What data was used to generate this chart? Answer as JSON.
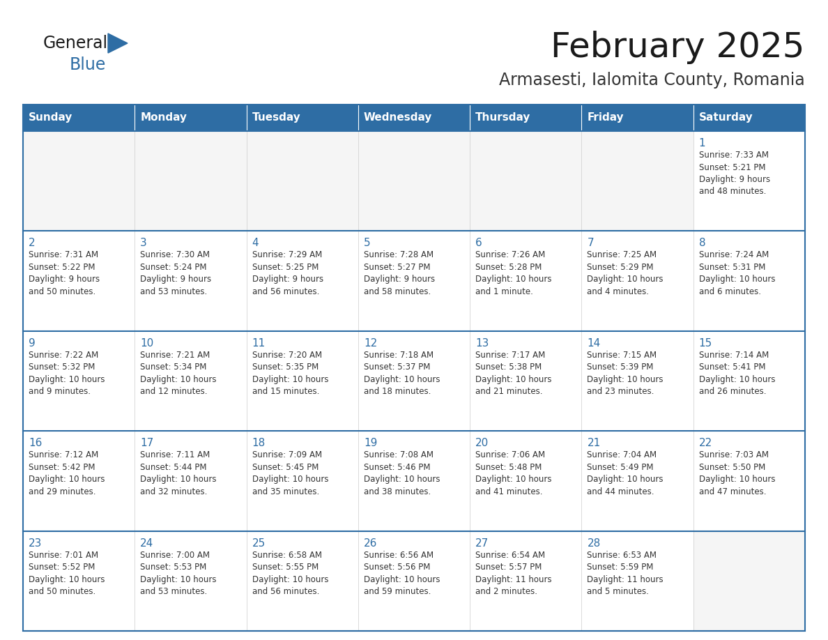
{
  "title": "February 2025",
  "subtitle": "Armasesti, Ialomita County, Romania",
  "header_bg": "#2E6DA4",
  "header_text": "#FFFFFF",
  "cell_bg": "#FFFFFF",
  "cell_bg_empty": "#F5F5F5",
  "separator_color": "#2E6DA4",
  "day_number_color": "#2E6DA4",
  "cell_text_color": "#333333",
  "days_of_week": [
    "Sunday",
    "Monday",
    "Tuesday",
    "Wednesday",
    "Thursday",
    "Friday",
    "Saturday"
  ],
  "calendar_data": [
    [
      null,
      null,
      null,
      null,
      null,
      null,
      {
        "day": 1,
        "sunrise": "7:33 AM",
        "sunset": "5:21 PM",
        "daylight": "9 hours\nand 48 minutes."
      }
    ],
    [
      {
        "day": 2,
        "sunrise": "7:31 AM",
        "sunset": "5:22 PM",
        "daylight": "9 hours\nand 50 minutes."
      },
      {
        "day": 3,
        "sunrise": "7:30 AM",
        "sunset": "5:24 PM",
        "daylight": "9 hours\nand 53 minutes."
      },
      {
        "day": 4,
        "sunrise": "7:29 AM",
        "sunset": "5:25 PM",
        "daylight": "9 hours\nand 56 minutes."
      },
      {
        "day": 5,
        "sunrise": "7:28 AM",
        "sunset": "5:27 PM",
        "daylight": "9 hours\nand 58 minutes."
      },
      {
        "day": 6,
        "sunrise": "7:26 AM",
        "sunset": "5:28 PM",
        "daylight": "10 hours\nand 1 minute."
      },
      {
        "day": 7,
        "sunrise": "7:25 AM",
        "sunset": "5:29 PM",
        "daylight": "10 hours\nand 4 minutes."
      },
      {
        "day": 8,
        "sunrise": "7:24 AM",
        "sunset": "5:31 PM",
        "daylight": "10 hours\nand 6 minutes."
      }
    ],
    [
      {
        "day": 9,
        "sunrise": "7:22 AM",
        "sunset": "5:32 PM",
        "daylight": "10 hours\nand 9 minutes."
      },
      {
        "day": 10,
        "sunrise": "7:21 AM",
        "sunset": "5:34 PM",
        "daylight": "10 hours\nand 12 minutes."
      },
      {
        "day": 11,
        "sunrise": "7:20 AM",
        "sunset": "5:35 PM",
        "daylight": "10 hours\nand 15 minutes."
      },
      {
        "day": 12,
        "sunrise": "7:18 AM",
        "sunset": "5:37 PM",
        "daylight": "10 hours\nand 18 minutes."
      },
      {
        "day": 13,
        "sunrise": "7:17 AM",
        "sunset": "5:38 PM",
        "daylight": "10 hours\nand 21 minutes."
      },
      {
        "day": 14,
        "sunrise": "7:15 AM",
        "sunset": "5:39 PM",
        "daylight": "10 hours\nand 23 minutes."
      },
      {
        "day": 15,
        "sunrise": "7:14 AM",
        "sunset": "5:41 PM",
        "daylight": "10 hours\nand 26 minutes."
      }
    ],
    [
      {
        "day": 16,
        "sunrise": "7:12 AM",
        "sunset": "5:42 PM",
        "daylight": "10 hours\nand 29 minutes."
      },
      {
        "day": 17,
        "sunrise": "7:11 AM",
        "sunset": "5:44 PM",
        "daylight": "10 hours\nand 32 minutes."
      },
      {
        "day": 18,
        "sunrise": "7:09 AM",
        "sunset": "5:45 PM",
        "daylight": "10 hours\nand 35 minutes."
      },
      {
        "day": 19,
        "sunrise": "7:08 AM",
        "sunset": "5:46 PM",
        "daylight": "10 hours\nand 38 minutes."
      },
      {
        "day": 20,
        "sunrise": "7:06 AM",
        "sunset": "5:48 PM",
        "daylight": "10 hours\nand 41 minutes."
      },
      {
        "day": 21,
        "sunrise": "7:04 AM",
        "sunset": "5:49 PM",
        "daylight": "10 hours\nand 44 minutes."
      },
      {
        "day": 22,
        "sunrise": "7:03 AM",
        "sunset": "5:50 PM",
        "daylight": "10 hours\nand 47 minutes."
      }
    ],
    [
      {
        "day": 23,
        "sunrise": "7:01 AM",
        "sunset": "5:52 PM",
        "daylight": "10 hours\nand 50 minutes."
      },
      {
        "day": 24,
        "sunrise": "7:00 AM",
        "sunset": "5:53 PM",
        "daylight": "10 hours\nand 53 minutes."
      },
      {
        "day": 25,
        "sunrise": "6:58 AM",
        "sunset": "5:55 PM",
        "daylight": "10 hours\nand 56 minutes."
      },
      {
        "day": 26,
        "sunrise": "6:56 AM",
        "sunset": "5:56 PM",
        "daylight": "10 hours\nand 59 minutes."
      },
      {
        "day": 27,
        "sunrise": "6:54 AM",
        "sunset": "5:57 PM",
        "daylight": "11 hours\nand 2 minutes."
      },
      {
        "day": 28,
        "sunrise": "6:53 AM",
        "sunset": "5:59 PM",
        "daylight": "11 hours\nand 5 minutes."
      },
      null
    ]
  ]
}
